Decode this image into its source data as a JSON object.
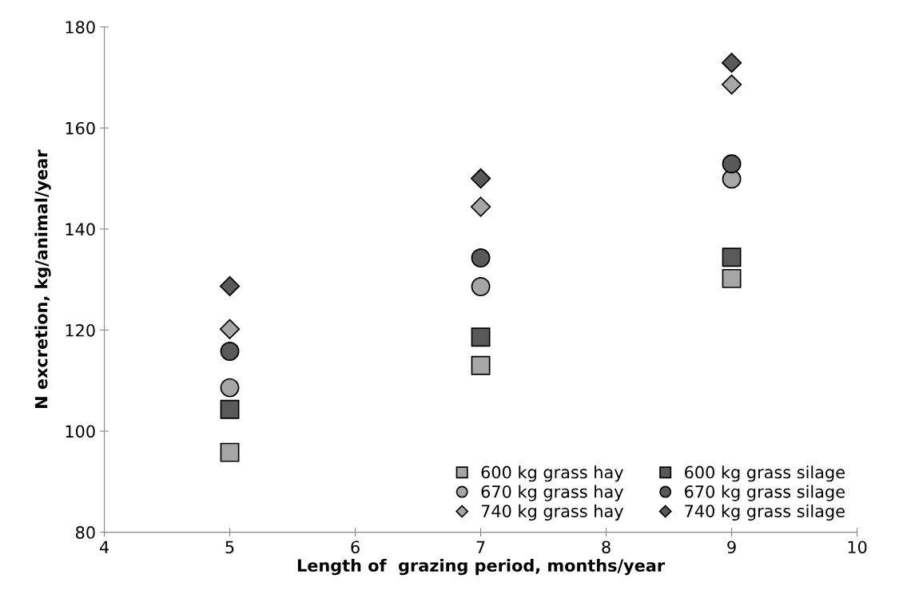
{
  "chart_data": {
    "type": "scatter",
    "xlabel": "Length of  grazing period, months/year",
    "ylabel": "N excretion, kg/animal/year",
    "xlim": [
      4,
      10
    ],
    "xticks": [
      4,
      5,
      6,
      7,
      8,
      9,
      10
    ],
    "ylim": [
      80,
      180
    ],
    "yticks": [
      80,
      100,
      120,
      140,
      160,
      180
    ],
    "grid": false,
    "legend": "bottom right",
    "series": [
      {
        "name": "600 kg grass hay",
        "color": "#a6a6a6",
        "marker": "square",
        "x": [
          5,
          7,
          9
        ],
        "values": [
          95.8,
          113,
          130.2
        ]
      },
      {
        "name": "670 kg grass hay",
        "color": "#a6a6a6",
        "marker": "circle",
        "x": [
          5,
          7,
          9
        ],
        "values": [
          108.6,
          128.6,
          149.9
        ]
      },
      {
        "name": "740 kg grass hay",
        "color": "#a6a6a6",
        "marker": "diamond",
        "x": [
          5,
          7,
          9
        ],
        "values": [
          120.2,
          144.4,
          168.6
        ]
      },
      {
        "name": "600 kg grass silage",
        "color": "#595959",
        "marker": "square",
        "x": [
          5,
          7,
          9
        ],
        "values": [
          104.3,
          118.6,
          134.4
        ]
      },
      {
        "name": "670 kg grass silage",
        "color": "#595959",
        "marker": "circle",
        "x": [
          5,
          7,
          9
        ],
        "values": [
          115.8,
          134.3,
          152.9
        ]
      },
      {
        "name": "740 kg grass silage",
        "color": "#595959",
        "marker": "diamond",
        "x": [
          5,
          7,
          9
        ],
        "values": [
          128.7,
          150,
          172.9
        ]
      }
    ]
  }
}
